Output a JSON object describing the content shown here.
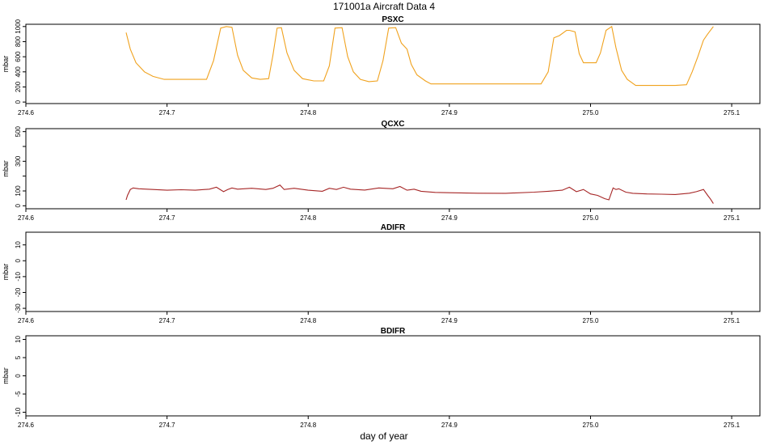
{
  "title": "171001a   Aircraft Data 4",
  "xlabel": "day of year",
  "chart_data": [
    {
      "type": "line",
      "title": "PSXC",
      "ylabel": "mbar",
      "xlim": [
        274.6,
        275.12
      ],
      "ylim": [
        -20,
        1030
      ],
      "xticks": [
        "274.6",
        "274.7",
        "274.8",
        "274.9",
        "275.0",
        "275.1"
      ],
      "yticks": [
        "0",
        "200",
        "600",
        "800",
        "1000"
      ],
      "ytick_values": [
        0,
        200,
        400,
        600,
        800,
        1000
      ],
      "ytick_labels": [
        "0",
        "200",
        "400",
        "600",
        "800",
        "1000"
      ],
      "color": "#f0a21e",
      "series": [
        {
          "x": [
            274.671,
            274.674,
            274.678,
            274.684,
            274.69,
            274.698,
            274.708,
            274.718,
            274.728,
            274.733,
            274.738,
            274.742,
            274.746,
            274.75,
            274.754,
            274.76,
            274.766,
            274.772,
            274.775,
            274.778,
            274.781,
            274.785,
            274.79,
            274.796,
            274.804,
            274.811,
            274.815,
            274.819,
            274.824,
            274.828,
            274.832,
            274.837,
            274.843,
            274.849,
            274.853,
            274.857,
            274.862,
            274.866,
            274.87,
            274.873,
            274.877,
            274.883,
            274.887,
            274.905,
            274.925,
            274.945,
            274.965,
            274.97,
            274.974,
            274.978,
            274.983,
            274.985,
            274.989,
            274.992,
            274.995,
            275.004,
            275.007,
            275.011,
            275.015,
            275.018,
            275.022,
            275.026,
            275.032,
            275.045,
            275.06,
            275.068,
            275.072,
            275.076,
            275.08,
            275.083,
            275.087
          ],
          "y": [
            920,
            700,
            520,
            400,
            340,
            300,
            300,
            300,
            300,
            550,
            980,
            1000,
            990,
            620,
            420,
            320,
            300,
            310,
            620,
            980,
            985,
            650,
            420,
            310,
            280,
            280,
            480,
            980,
            985,
            600,
            400,
            300,
            270,
            280,
            550,
            980,
            985,
            780,
            700,
            500,
            360,
            280,
            240,
            240,
            240,
            240,
            240,
            400,
            850,
            880,
            950,
            950,
            930,
            640,
            520,
            520,
            650,
            950,
            1000,
            720,
            420,
            300,
            220,
            220,
            220,
            230,
            400,
            600,
            820,
            900,
            1000
          ]
        }
      ]
    },
    {
      "type": "line",
      "title": "QCXC",
      "ylabel": "mbar",
      "xlim": [
        274.6,
        275.12
      ],
      "ylim": [
        -20,
        520
      ],
      "xticks": [
        "274.6",
        "274.7",
        "274.8",
        "274.9",
        "275.0",
        "275.1"
      ],
      "ytick_values": [
        0,
        100,
        200,
        300,
        400,
        500
      ],
      "ytick_labels": [
        "0",
        "100",
        "",
        "300",
        "",
        "500"
      ],
      "color": "#a62626",
      "series": [
        {
          "x": [
            274.671,
            274.672,
            274.674,
            274.676,
            274.68,
            274.69,
            274.7,
            274.71,
            274.72,
            274.73,
            274.735,
            274.74,
            274.743,
            274.746,
            274.75,
            274.76,
            274.77,
            274.775,
            274.78,
            274.783,
            274.79,
            274.8,
            274.81,
            274.815,
            274.82,
            274.825,
            274.83,
            274.84,
            274.85,
            274.86,
            274.865,
            274.87,
            274.875,
            274.88,
            274.89,
            274.9,
            274.92,
            274.94,
            274.96,
            274.97,
            274.98,
            274.985,
            274.99,
            274.995,
            275.0,
            275.005,
            275.01,
            275.013,
            275.016,
            275.018,
            275.02,
            275.025,
            275.03,
            275.04,
            275.05,
            275.06,
            275.07,
            275.075,
            275.08,
            275.083,
            275.085,
            275.087
          ],
          "y": [
            40,
            70,
            110,
            120,
            115,
            110,
            105,
            108,
            105,
            112,
            125,
            95,
            110,
            120,
            112,
            118,
            110,
            118,
            140,
            110,
            118,
            105,
            98,
            118,
            110,
            125,
            112,
            106,
            120,
            115,
            130,
            105,
            112,
            98,
            90,
            88,
            85,
            84,
            92,
            98,
            105,
            125,
            95,
            110,
            80,
            70,
            48,
            40,
            120,
            110,
            115,
            92,
            84,
            80,
            78,
            76,
            85,
            95,
            110,
            70,
            45,
            15
          ]
        }
      ]
    },
    {
      "type": "line",
      "title": "ADIFR",
      "ylabel": "mbar",
      "xlim": [
        274.6,
        275.12
      ],
      "ylim": [
        -32,
        18
      ],
      "xticks": [
        "274.6",
        "274.7",
        "274.8",
        "274.9",
        "275.0",
        "275.1"
      ],
      "ytick_values": [
        -30,
        -20,
        -10,
        0,
        10
      ],
      "ytick_labels": [
        "-30",
        "-20",
        "-10",
        "0",
        "10"
      ],
      "color": "#000000",
      "series": []
    },
    {
      "type": "line",
      "title": "BDIFR",
      "ylabel": "mbar",
      "xlim": [
        274.6,
        275.12
      ],
      "ylim": [
        -11,
        11
      ],
      "xticks": [
        "274.6",
        "274.7",
        "274.8",
        "274.9",
        "275.0",
        "275.1"
      ],
      "ytick_values": [
        -10,
        -5,
        0,
        5,
        10
      ],
      "ytick_labels": [
        "-10",
        "-5",
        "0",
        "5",
        "10"
      ],
      "color": "#000000",
      "series": []
    }
  ]
}
